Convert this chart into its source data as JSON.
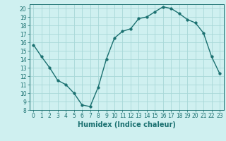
{
  "x": [
    0,
    1,
    2,
    3,
    4,
    5,
    6,
    7,
    8,
    9,
    10,
    11,
    12,
    13,
    14,
    15,
    16,
    17,
    18,
    19,
    20,
    21,
    22,
    23
  ],
  "y": [
    15.7,
    14.3,
    13.0,
    11.5,
    11.0,
    10.0,
    8.6,
    8.4,
    10.7,
    14.0,
    16.5,
    17.3,
    17.6,
    18.8,
    19.0,
    19.6,
    20.2,
    20.0,
    19.4,
    18.7,
    18.3,
    17.1,
    14.3,
    12.3
  ],
  "line_color": "#1a7070",
  "marker": "o",
  "markersize": 2.5,
  "linewidth": 1.0,
  "xlabel": "Humidex (Indice chaleur)",
  "xlabel_fontsize": 7,
  "xticks": [
    0,
    1,
    2,
    3,
    4,
    5,
    6,
    7,
    8,
    9,
    10,
    11,
    12,
    13,
    14,
    15,
    16,
    17,
    18,
    19,
    20,
    21,
    22,
    23
  ],
  "yticks": [
    8,
    9,
    10,
    11,
    12,
    13,
    14,
    15,
    16,
    17,
    18,
    19,
    20
  ],
  "xlim": [
    -0.5,
    23.5
  ],
  "ylim": [
    8,
    20.5
  ],
  "bg_color": "#cff0f0",
  "grid_color": "#a8d8d8",
  "tick_fontsize": 5.5
}
